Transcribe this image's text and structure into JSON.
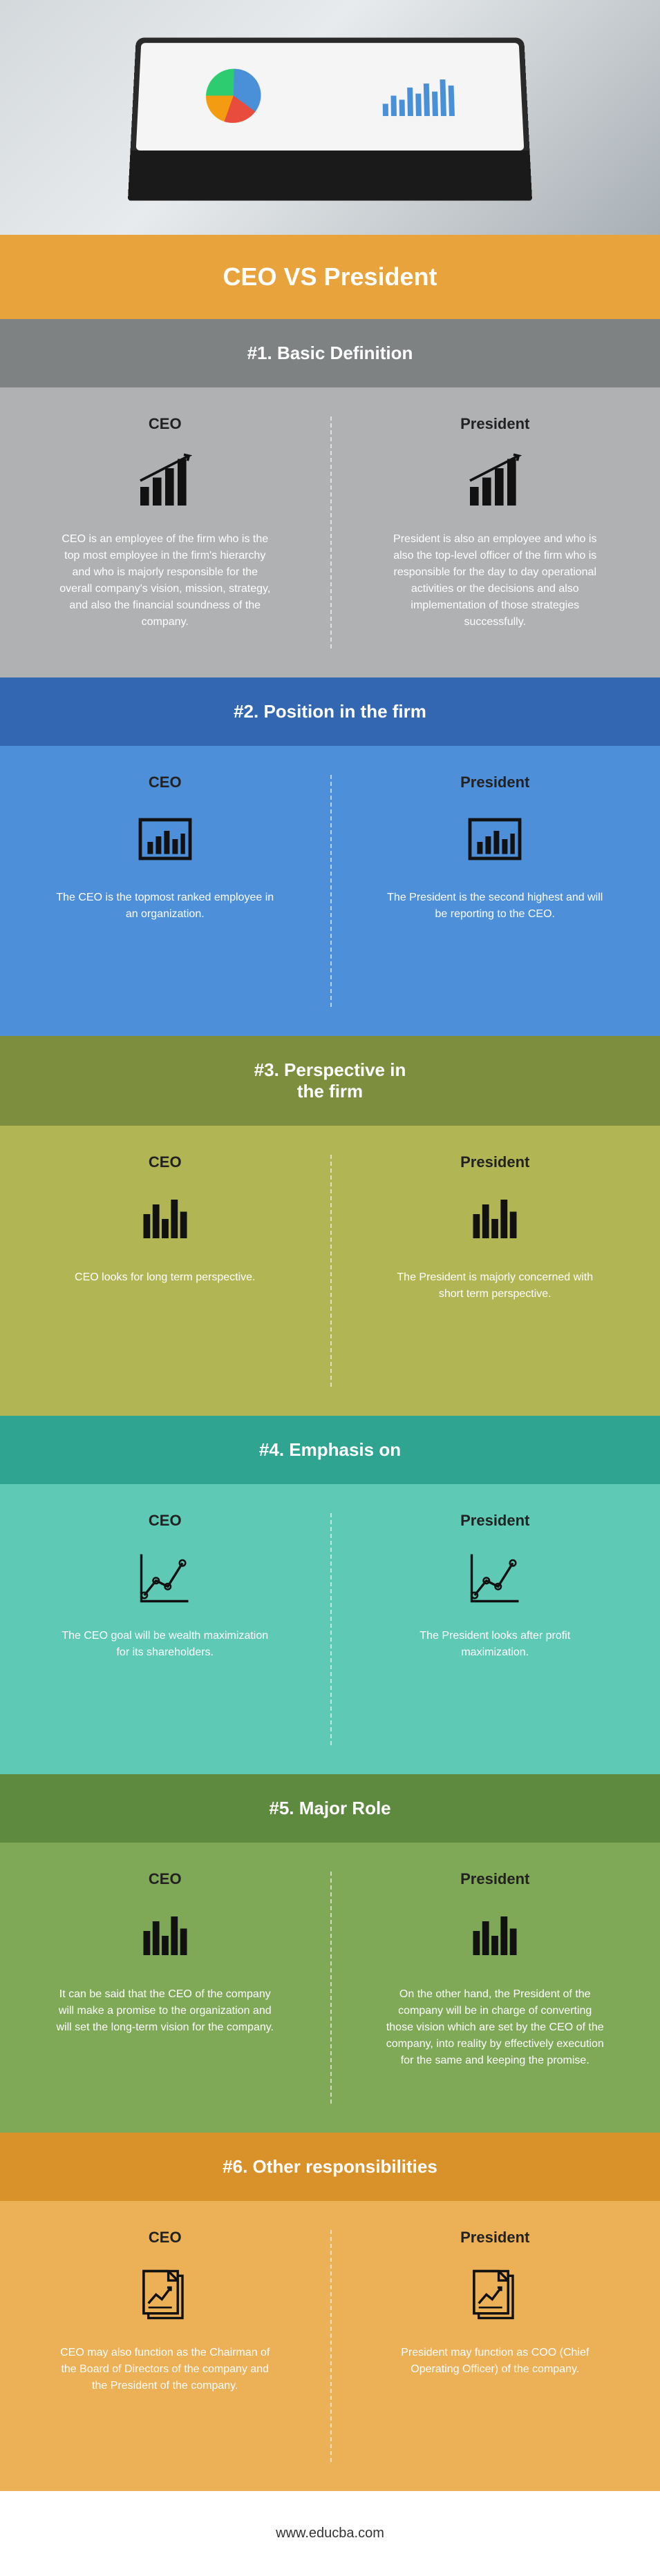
{
  "main_title": "CEO VS President",
  "footer_url": "www.educba.com",
  "colors": {
    "orange": "#e8a33d",
    "s1_header": "#7f8283",
    "s1_body": "#afb1b2",
    "s2_header": "#3367b1",
    "s2_body": "#4e8fd9",
    "s3_header": "#7d8e3f",
    "s3_body": "#b1b553",
    "s4_header": "#2ea491",
    "s4_body": "#5ec9b5",
    "s5_header": "#5d8a3f",
    "s5_body": "#7fa857",
    "s6_header": "#d9912a",
    "s6_body": "#ecb056"
  },
  "sections": [
    {
      "title": "#1. Basic Definition",
      "icon": "growth_bars",
      "ceo_text": "CEO is an employee of the firm who is the top most employee in the firm's hierarchy and who is majorly responsible for the overall company's vision, mission, strategy, and also the financial soundness of the company.",
      "pres_text": "President is also an employee and who is also the top-level officer of the firm who is responsible for the day to day operational activities or the decisions and also implementation of those strategies successfully."
    },
    {
      "title": "#2. Position in the firm",
      "icon": "boxed_bars",
      "ceo_text": "The CEO is the topmost ranked employee in an organization.",
      "pres_text": "The President is the second highest and will be reporting to the CEO."
    },
    {
      "title": "#3. Perspective in\nthe firm",
      "icon": "bars",
      "ceo_text": "CEO looks for long term perspective.",
      "pres_text": "The President is majorly concerned with short term perspective."
    },
    {
      "title": "#4. Emphasis on",
      "icon": "line_chart",
      "ceo_text": "The CEO goal will be wealth maximization for its shareholders.",
      "pres_text": "The President looks after profit maximization."
    },
    {
      "title": "#5. Major Role",
      "icon": "bars",
      "ceo_text": "It can be said that the CEO of the company will make a promise to the organization and will set the long-term vision for the company.",
      "pres_text": "On the other hand, the President of the company will be in charge of converting those vision which are set by the CEO of the company, into reality by effectively execution for the same and keeping the promise."
    },
    {
      "title": "#6. Other responsibilities",
      "icon": "document",
      "ceo_text": "CEO may also function as the Chairman of the Board of Directors of the company and the President of the company.",
      "pres_text": "President may function as COO (Chief Operating Officer) of the company."
    }
  ],
  "col_labels": {
    "left": "CEO",
    "right": "President"
  }
}
